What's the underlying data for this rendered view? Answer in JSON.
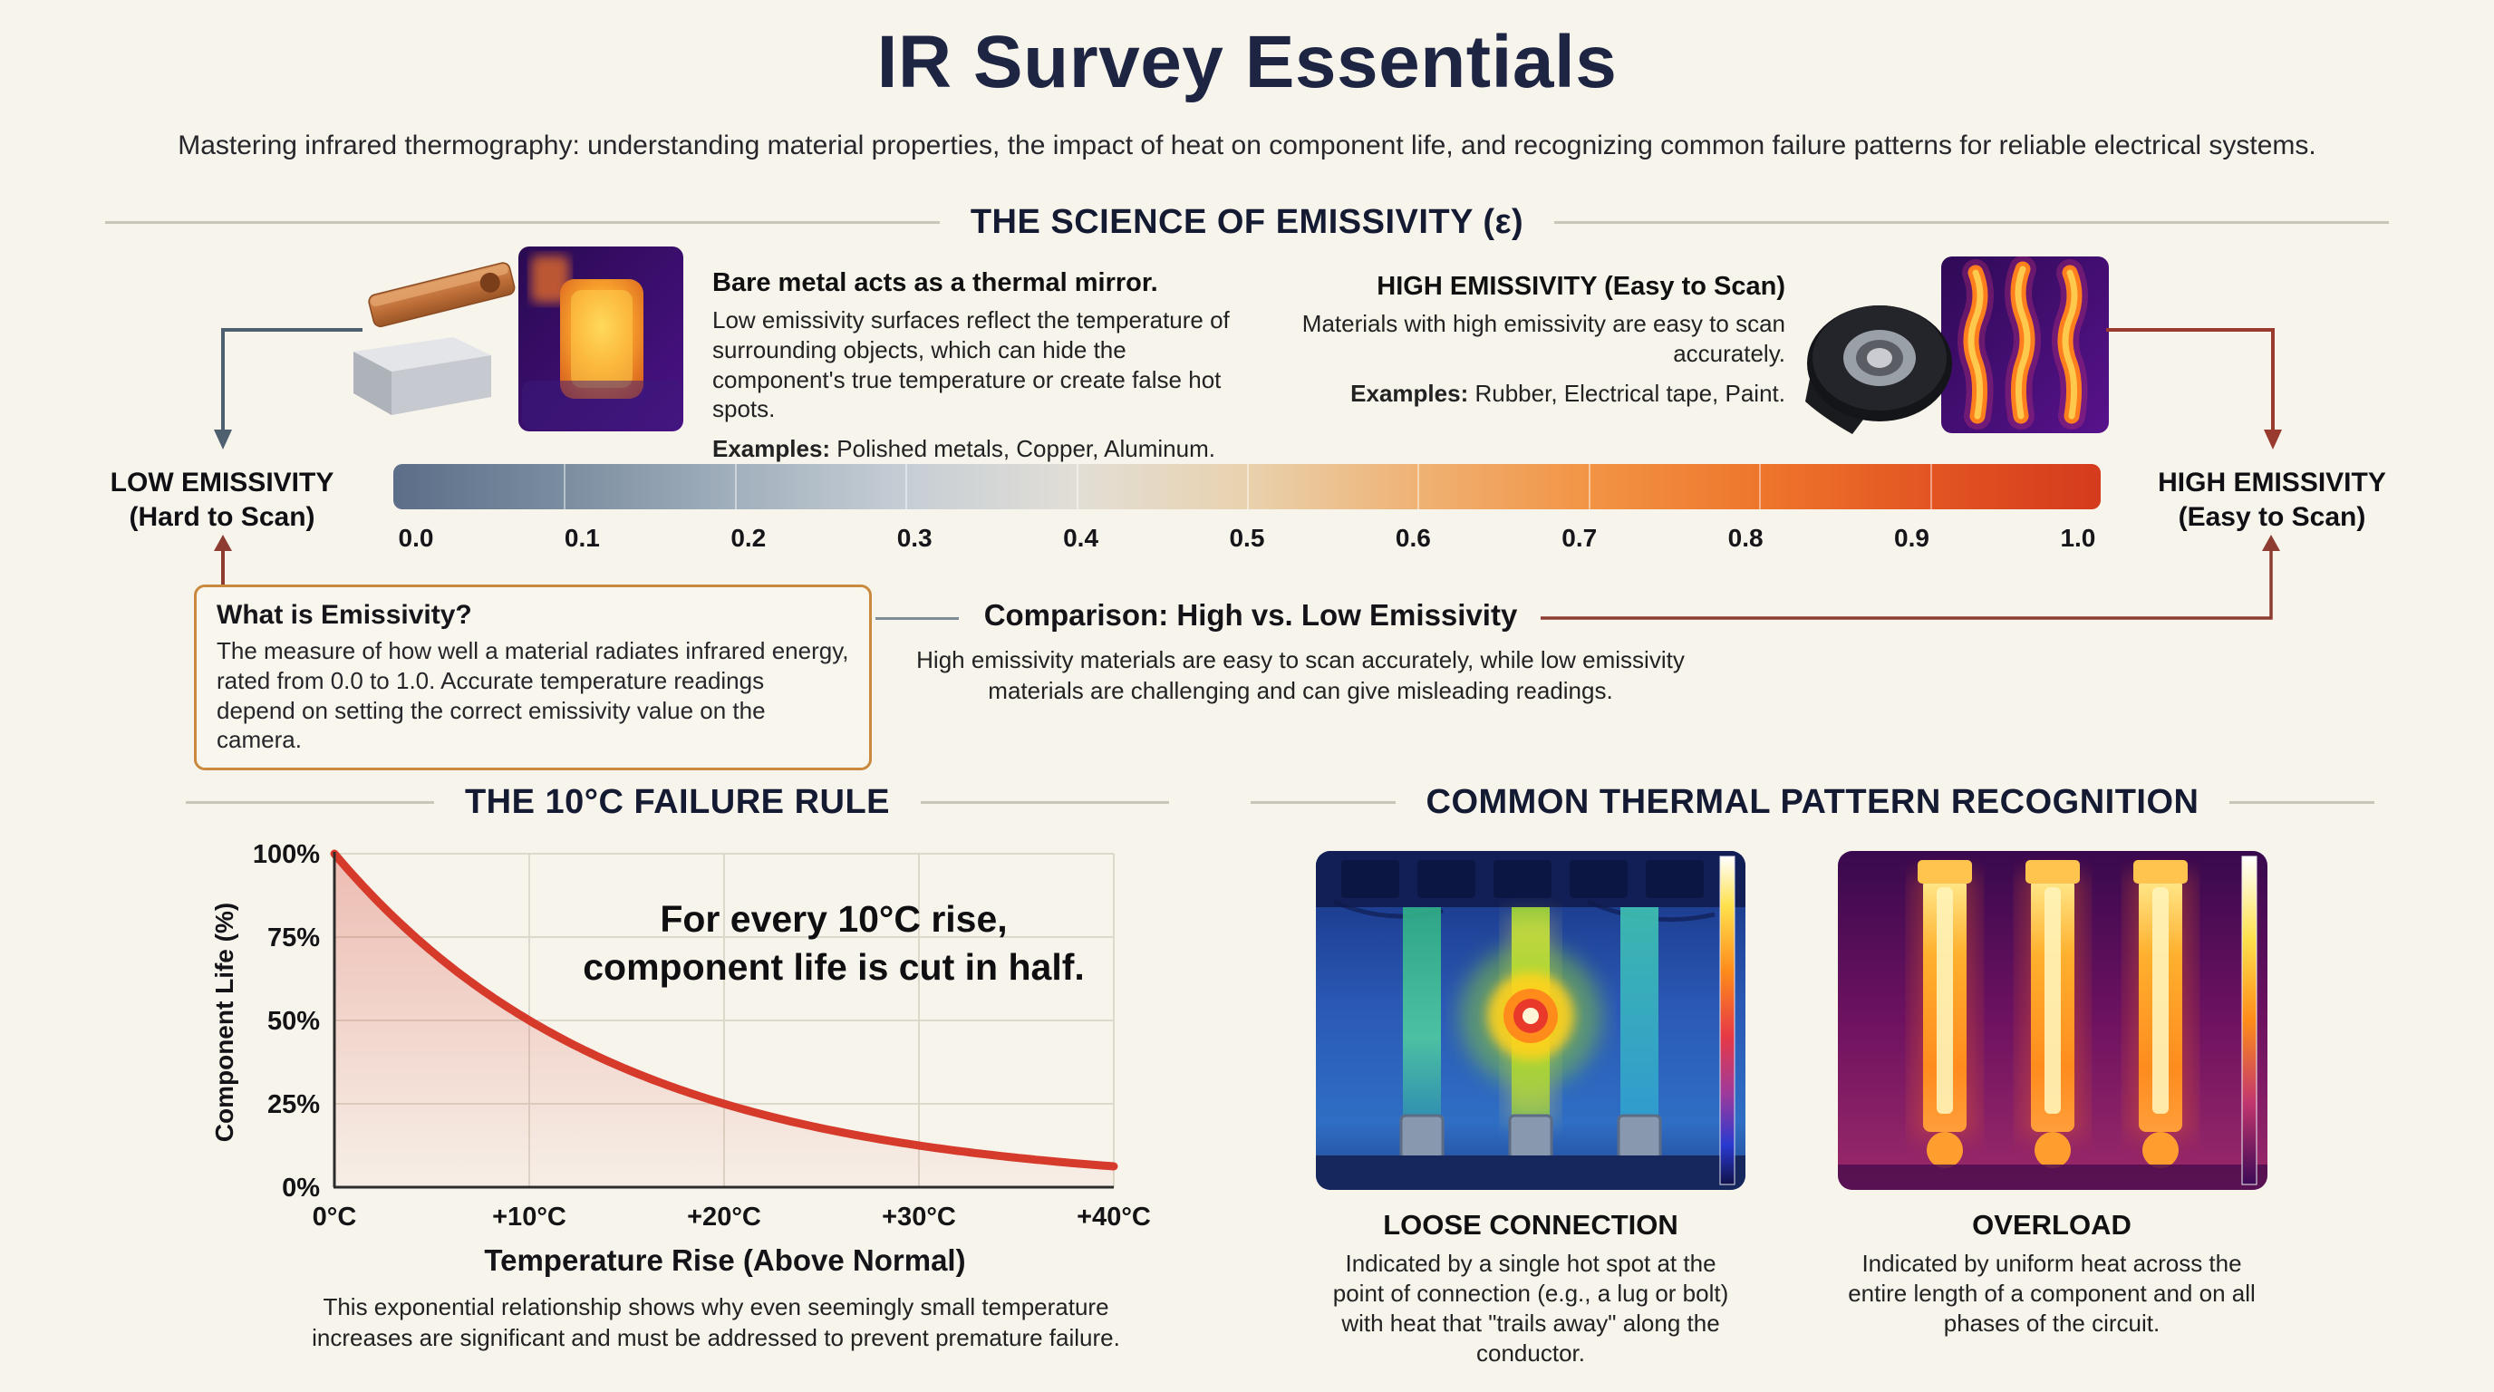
{
  "page": {
    "title": "IR Survey Essentials",
    "subtitle": "Mastering infrared thermography: understanding material properties, the impact of heat on component life, and recognizing common failure patterns for reliable electrical systems."
  },
  "emissivity_section": {
    "header": "THE SCIENCE OF EMISSIVITY (ε)",
    "low_block": {
      "heading": "Bare metal acts as a thermal mirror.",
      "body": "Low emissivity surfaces reflect the temperature of surrounding objects, which can hide the component's true temperature or create false hot spots.",
      "examples_label": "Examples:",
      "examples": " Polished metals, Copper, Aluminum."
    },
    "high_block": {
      "heading": "HIGH EMISSIVITY (Easy to Scan)",
      "body": "Materials with high emissivity are easy to scan accurately.",
      "examples_label": "Examples:",
      "examples": " Rubber, Electrical tape, Paint."
    },
    "scale": {
      "ticks": [
        "0.0",
        "0.1",
        "0.2",
        "0.3",
        "0.4",
        "0.5",
        "0.6",
        "0.7",
        "0.8",
        "0.9",
        "1.0"
      ],
      "low_label_line1": "LOW EMISSIVITY",
      "low_label_line2": "(Hard to Scan)",
      "high_label_line1": "HIGH EMISSIVITY",
      "high_label_line2": "(Easy to Scan)"
    },
    "what_is_box": {
      "title": "What is Emissivity?",
      "body": "The measure of how well a material radiates infrared energy, rated from 0.0 to 1.0. Accurate temperature readings depend on setting the correct emissivity value on the camera."
    },
    "comparison": {
      "title": "Comparison: High vs. Low Emissivity",
      "body": "High emissivity materials are easy to scan accurately, while low emissivity materials are challenging and can give misleading readings."
    }
  },
  "failure_rule_section": {
    "header": "THE 10°C FAILURE RULE",
    "annotation_line1": "For every 10°C rise,",
    "annotation_line2": "component life is cut in half.",
    "caption": "This exponential relationship shows why even seemingly small temperature increases are significant and must be addressed to prevent premature failure."
  },
  "chart_data": {
    "type": "area",
    "x": [
      0,
      10,
      20,
      30,
      40
    ],
    "values": [
      100,
      50,
      25,
      12.5,
      6.25
    ],
    "x_tick_labels": [
      "0°C",
      "+10°C",
      "+20°C",
      "+30°C",
      "+40°C"
    ],
    "y_tick_labels": [
      "0%",
      "25%",
      "50%",
      "75%",
      "100%"
    ],
    "xlabel": "Temperature Rise (Above Normal)",
    "ylabel": "Component Life (%)",
    "ylim": [
      0,
      100
    ],
    "line_color": "#d63a2b",
    "grid": true,
    "legend": "none",
    "title": "THE 10°C FAILURE RULE"
  },
  "patterns_section": {
    "header": "COMMON THERMAL PATTERN RECOGNITION",
    "patterns": [
      {
        "title": "LOOSE CONNECTION",
        "body": "Indicated by a single hot spot at the point of connection (e.g., a lug or bolt) with heat that \"trails away\" along the conductor."
      },
      {
        "title": "OVERLOAD",
        "body": "Indicated by uniform heat across the entire length of a component and on all phases of the circuit."
      }
    ]
  },
  "colors": {
    "background": "#f7f4ec",
    "title_navy": "#1d2543",
    "box_border_orange": "#c9893e",
    "curve_red": "#d63a2b",
    "arrow_slate": "#4e5f70",
    "arrow_maroon": "#8e3b32",
    "scale_gradient": [
      "#5c6e88",
      "#7b8da0",
      "#a2b0bd",
      "#c6ced5",
      "#e2ded6",
      "#e9d2ae",
      "#efb274",
      "#f29445",
      "#ee762c",
      "#e35522",
      "#d43b1d"
    ]
  }
}
